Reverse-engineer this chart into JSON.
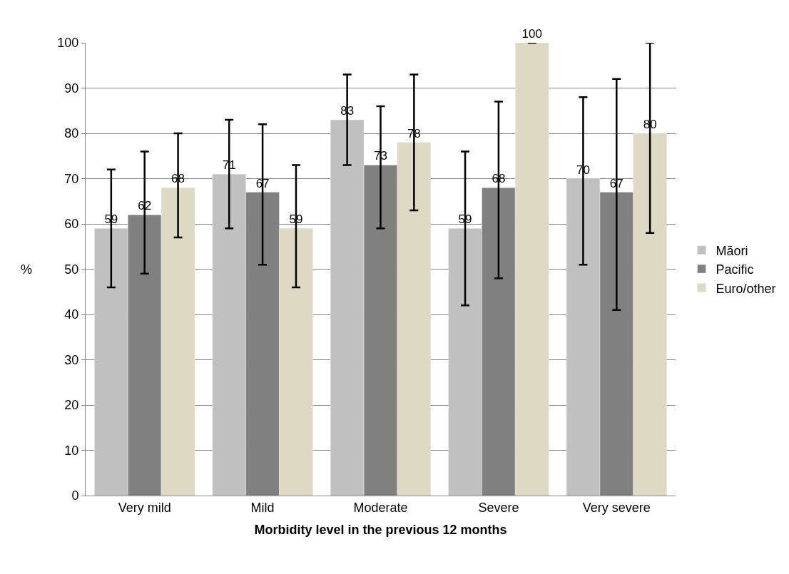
{
  "chart_data": {
    "type": "bar",
    "xlabel": "Morbidity level in the previous 12 months",
    "ylabel": "%",
    "categories": [
      "Very mild",
      "Mild",
      "Moderate",
      "Severe",
      "Very severe"
    ],
    "series": [
      {
        "name": "Māori",
        "color": "#c0c0c0",
        "values": [
          59,
          71,
          83,
          59,
          70
        ],
        "errors": [
          [
            46,
            72
          ],
          [
            59,
            83
          ],
          [
            73,
            93
          ],
          [
            42,
            76
          ],
          [
            51,
            88
          ]
        ]
      },
      {
        "name": "Pacific",
        "color": "#808080",
        "values": [
          62,
          67,
          73,
          68,
          67
        ],
        "errors": [
          [
            49,
            76
          ],
          [
            51,
            82
          ],
          [
            59,
            86
          ],
          [
            48,
            87
          ],
          [
            41,
            92
          ]
        ]
      },
      {
        "name": "Euro/other",
        "color": "#ddd9c3",
        "values": [
          68,
          59,
          78,
          100,
          80
        ],
        "errors": [
          [
            57,
            80
          ],
          [
            46,
            73
          ],
          [
            63,
            93
          ],
          null,
          [
            58,
            100
          ]
        ]
      }
    ],
    "ylim": [
      0,
      100
    ],
    "yticks": [
      0,
      10,
      20,
      30,
      40,
      50,
      60,
      70,
      80,
      90,
      100
    ],
    "grid": "y",
    "legend": "right",
    "data_labels": true
  }
}
